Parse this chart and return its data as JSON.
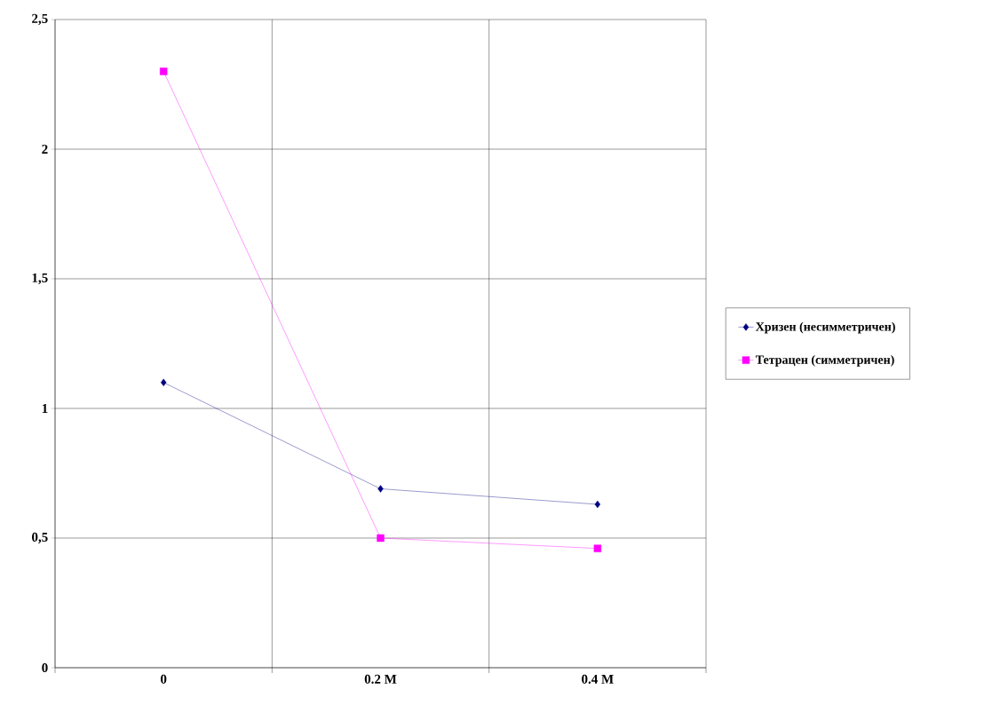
{
  "chart_data": {
    "type": "line",
    "categories": [
      "0",
      "0.2 M",
      "0.4 M"
    ],
    "series": [
      {
        "name": "Хризен (несимметричен)",
        "color": "#000080",
        "marker": "diamond",
        "values": [
          1.1,
          0.69,
          0.63
        ]
      },
      {
        "name": "Тетрацен (симметричен)",
        "color": "#ff00ff",
        "marker": "square",
        "values": [
          2.3,
          0.5,
          0.46
        ]
      }
    ],
    "ylim": [
      0,
      2.5
    ],
    "yticks": [
      {
        "value": 0,
        "label": "0"
      },
      {
        "value": 0.5,
        "label": "0,5"
      },
      {
        "value": 1,
        "label": "1"
      },
      {
        "value": 1.5,
        "label": "1,5"
      },
      {
        "value": 2,
        "label": "2"
      },
      {
        "value": 2.5,
        "label": "2,5"
      }
    ],
    "grid": true,
    "legend": "right",
    "line_style": "solid"
  }
}
